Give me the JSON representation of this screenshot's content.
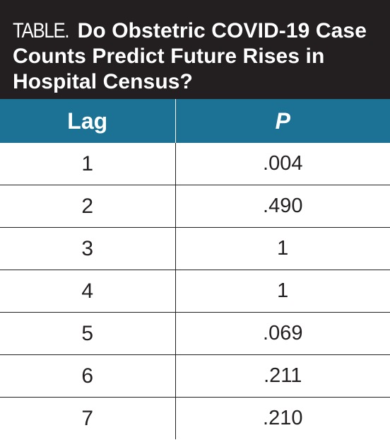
{
  "title": {
    "label": "TABLE.",
    "text": "Do Obstetric COVID-19 Case Counts Predict Future Rises in Hospital Census?"
  },
  "table": {
    "headers": [
      "Lag",
      "P"
    ],
    "rows": [
      {
        "lag": "1",
        "p": ".004"
      },
      {
        "lag": "2",
        "p": ".490"
      },
      {
        "lag": "3",
        "p": "1"
      },
      {
        "lag": "4",
        "p": "1"
      },
      {
        "lag": "5",
        "p": ".069"
      },
      {
        "lag": "6",
        "p": ".211"
      },
      {
        "lag": "7",
        "p": ".210"
      }
    ]
  },
  "colors": {
    "title_bar": "#231f20",
    "header_bar": "#1b7294",
    "text": "#231f20"
  }
}
